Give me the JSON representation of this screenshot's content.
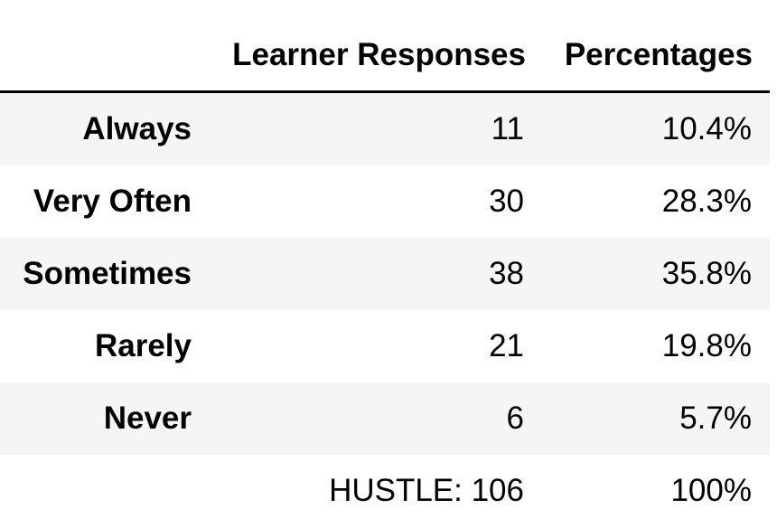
{
  "table": {
    "columns": [
      "Learner Responses",
      "Percentages"
    ],
    "rows": [
      {
        "label": "Always",
        "responses": "11",
        "percentage": "10.4%"
      },
      {
        "label": "Very Often",
        "responses": "30",
        "percentage": "28.3%"
      },
      {
        "label": "Sometimes",
        "responses": "38",
        "percentage": "35.8%"
      },
      {
        "label": "Rarely",
        "responses": "21",
        "percentage": "19.8%"
      },
      {
        "label": "Never",
        "responses": "6",
        "percentage": "5.7%"
      }
    ],
    "total": {
      "label": "",
      "responses": "HUSTLE: 106",
      "percentage": "100%"
    }
  }
}
